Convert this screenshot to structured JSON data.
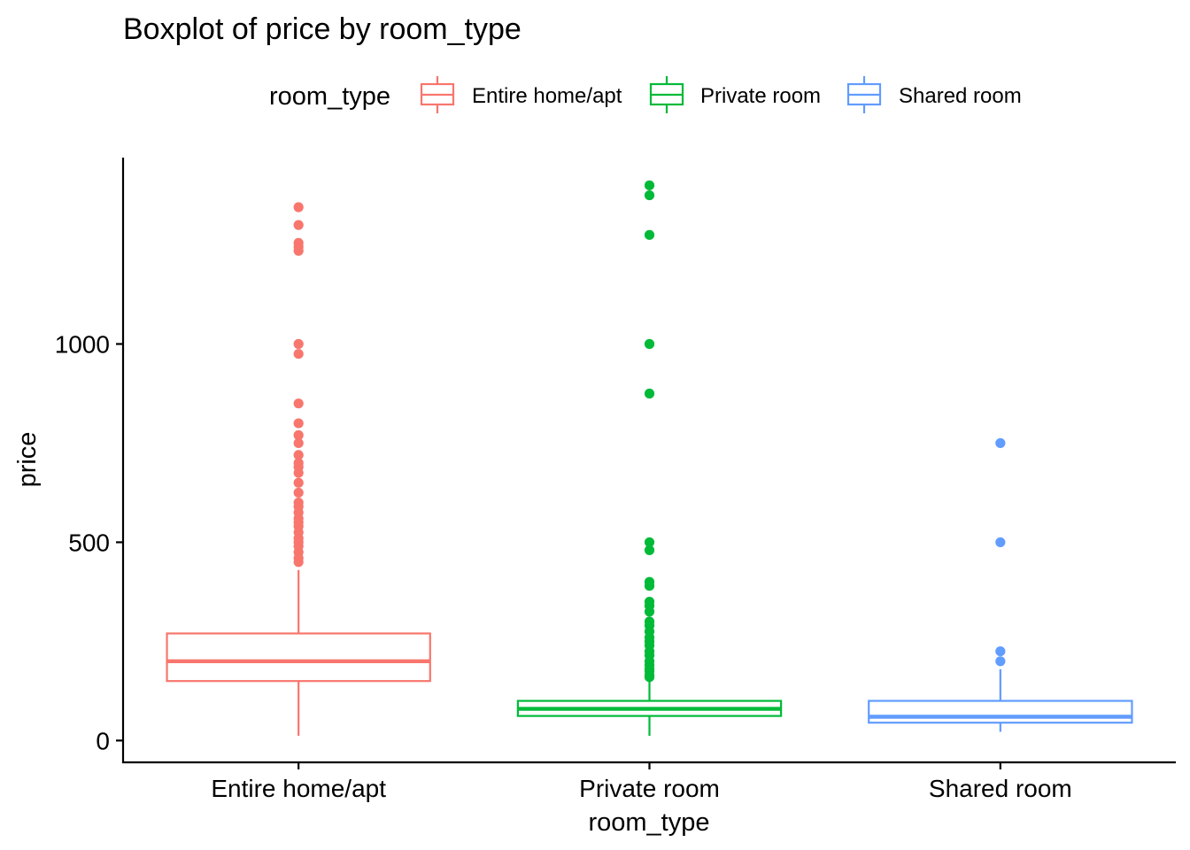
{
  "chart_data": {
    "type": "boxplot",
    "title": "Boxplot of price by room_type",
    "xlabel": "room_type",
    "ylabel": "price",
    "ylim": [
      -55,
      1470
    ],
    "yticks": [
      0,
      500,
      1000
    ],
    "legend": {
      "title": "room_type",
      "position": "top",
      "entries": [
        "Entire home/apt",
        "Private room",
        "Shared room"
      ]
    },
    "categories": [
      "Entire home/apt",
      "Private room",
      "Shared room"
    ],
    "series": [
      {
        "category": "Entire home/apt",
        "color": "#F8766D",
        "whisker_low": 12,
        "q1": 150,
        "median": 200,
        "q3": 270,
        "whisker_high": 430,
        "outliers": [
          1345,
          1300,
          1255,
          1245,
          1235,
          1000,
          975,
          850,
          800,
          770,
          750,
          720,
          700,
          690,
          675,
          650,
          625,
          600,
          590,
          575,
          560,
          550,
          540,
          525,
          510,
          500,
          490,
          475,
          460,
          450
        ]
      },
      {
        "category": "Private room",
        "color": "#00BA38",
        "whisker_low": 12,
        "q1": 62,
        "median": 80,
        "q3": 100,
        "whisker_high": 150,
        "outliers": [
          1400,
          1375,
          1275,
          1000,
          875,
          500,
          480,
          400,
          390,
          350,
          340,
          325,
          300,
          290,
          275,
          260,
          250,
          240,
          225,
          215,
          200,
          190,
          180,
          175,
          165,
          160
        ]
      },
      {
        "category": "Shared room",
        "color": "#619CFF",
        "whisker_low": 22,
        "q1": 45,
        "median": 60,
        "q3": 100,
        "whisker_high": 180,
        "outliers": [
          750,
          500,
          225,
          200
        ]
      }
    ]
  }
}
